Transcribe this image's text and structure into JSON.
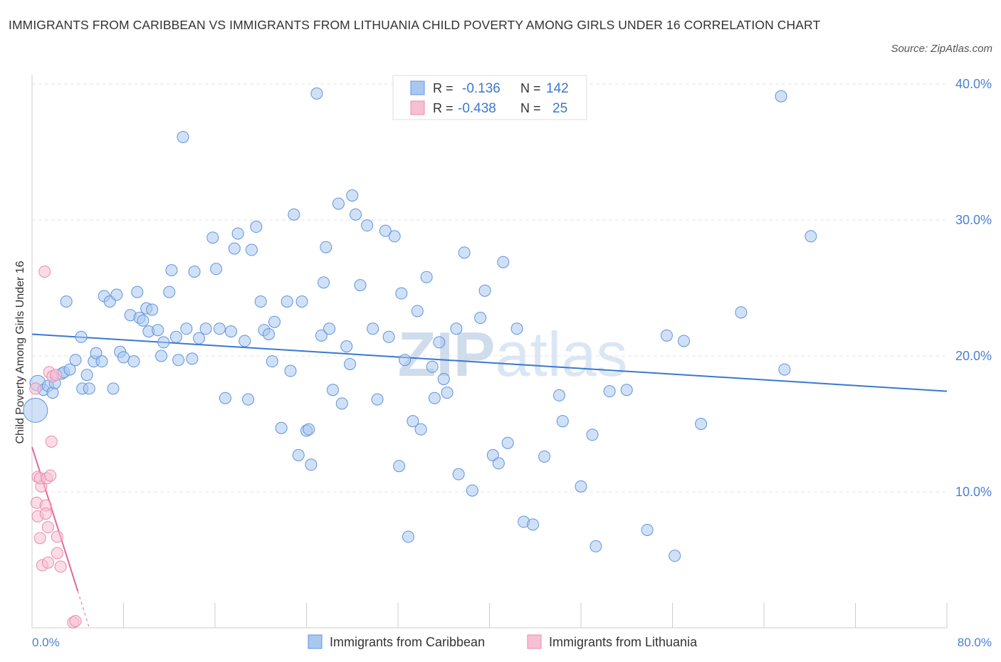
{
  "title": "IMMIGRANTS FROM CARIBBEAN VS IMMIGRANTS FROM LITHUANIA CHILD POVERTY AMONG GIRLS UNDER 16 CORRELATION CHART",
  "source": "Source: ZipAtlas.com",
  "watermark": "ZIPatlas",
  "colors": {
    "blue_fill": "#a9c8f0",
    "blue_stroke": "#5f93dc",
    "blue_line": "#3a78d0",
    "pink_fill": "#f7c0d2",
    "pink_stroke": "#e98bad",
    "pink_line": "#e2689a",
    "axis_text": "#4a7fd4",
    "grid": "#e3e3e3"
  },
  "legend": {
    "rows": [
      {
        "r_label": "R =",
        "r_value": "-0.136",
        "n_label": "N =",
        "n_value": "142"
      },
      {
        "r_label": "R =",
        "r_value": "-0.438",
        "n_label": "N =",
        "n_value": "25"
      }
    ]
  },
  "chart_data": {
    "type": "scatter",
    "title": "IMMIGRANTS FROM CARIBBEAN VS IMMIGRANTS FROM LITHUANIA CHILD POVERTY AMONG GIRLS UNDER 16 CORRELATION CHART",
    "xlabel": "",
    "ylabel": "Child Poverty Among Girls Under 16",
    "xlim": [
      0,
      80
    ],
    "ylim": [
      0,
      40
    ],
    "x_tick_labels": [
      "0.0%",
      "80.0%"
    ],
    "y_tick_values": [
      10,
      20,
      30,
      40
    ],
    "y_tick_labels": [
      "10.0%",
      "20.0%",
      "30.0%",
      "40.0%"
    ],
    "grid": true,
    "legend_position": "top-center",
    "series": [
      {
        "name": "Immigrants from Caribbean",
        "r": -0.136,
        "n": 142,
        "trend": {
          "x": [
            0,
            80
          ],
          "y": [
            21.6,
            17.4
          ]
        },
        "points": [
          [
            0.5,
            18.0
          ],
          [
            0.3,
            16.0
          ],
          [
            1.0,
            17.5
          ],
          [
            1.4,
            17.8
          ],
          [
            1.8,
            17.3
          ],
          [
            2.0,
            18.0
          ],
          [
            2.6,
            18.7
          ],
          [
            2.8,
            18.8
          ],
          [
            3.0,
            24.0
          ],
          [
            3.3,
            19.0
          ],
          [
            3.8,
            19.7
          ],
          [
            4.3,
            21.4
          ],
          [
            4.4,
            17.6
          ],
          [
            4.8,
            18.6
          ],
          [
            5.0,
            17.6
          ],
          [
            5.4,
            19.6
          ],
          [
            5.6,
            20.2
          ],
          [
            6.1,
            19.6
          ],
          [
            6.3,
            24.4
          ],
          [
            6.8,
            24.0
          ],
          [
            7.1,
            17.6
          ],
          [
            7.4,
            24.5
          ],
          [
            7.7,
            20.3
          ],
          [
            8.0,
            19.9
          ],
          [
            8.6,
            23.0
          ],
          [
            8.9,
            19.6
          ],
          [
            9.2,
            24.7
          ],
          [
            9.4,
            22.8
          ],
          [
            9.7,
            22.6
          ],
          [
            10.0,
            23.5
          ],
          [
            10.2,
            21.8
          ],
          [
            10.5,
            23.4
          ],
          [
            11.0,
            21.9
          ],
          [
            11.3,
            20.0
          ],
          [
            11.5,
            21.0
          ],
          [
            12.0,
            24.7
          ],
          [
            12.2,
            26.3
          ],
          [
            12.6,
            21.4
          ],
          [
            12.8,
            19.7
          ],
          [
            13.2,
            36.1
          ],
          [
            13.5,
            22.0
          ],
          [
            14.0,
            19.8
          ],
          [
            14.2,
            26.2
          ],
          [
            14.6,
            21.3
          ],
          [
            15.2,
            22.0
          ],
          [
            15.8,
            28.7
          ],
          [
            16.1,
            26.4
          ],
          [
            16.4,
            22.0
          ],
          [
            16.9,
            16.9
          ],
          [
            17.4,
            21.8
          ],
          [
            17.7,
            27.9
          ],
          [
            18.0,
            29.0
          ],
          [
            18.6,
            21.1
          ],
          [
            18.9,
            16.8
          ],
          [
            19.2,
            27.8
          ],
          [
            19.6,
            29.5
          ],
          [
            20.0,
            24.0
          ],
          [
            20.3,
            21.9
          ],
          [
            20.7,
            21.6
          ],
          [
            21.0,
            19.6
          ],
          [
            21.2,
            22.5
          ],
          [
            21.8,
            14.7
          ],
          [
            22.3,
            24.0
          ],
          [
            22.6,
            18.9
          ],
          [
            22.9,
            30.4
          ],
          [
            23.3,
            12.7
          ],
          [
            23.6,
            24.0
          ],
          [
            24.0,
            14.5
          ],
          [
            24.2,
            14.6
          ],
          [
            24.4,
            12.0
          ],
          [
            24.9,
            39.3
          ],
          [
            25.3,
            21.5
          ],
          [
            25.5,
            25.4
          ],
          [
            25.7,
            28.0
          ],
          [
            26.0,
            22.0
          ],
          [
            26.3,
            17.5
          ],
          [
            26.8,
            31.2
          ],
          [
            27.1,
            16.5
          ],
          [
            27.5,
            20.7
          ],
          [
            27.8,
            19.4
          ],
          [
            28.0,
            31.8
          ],
          [
            28.3,
            30.4
          ],
          [
            28.7,
            25.2
          ],
          [
            29.3,
            29.6
          ],
          [
            29.8,
            22.0
          ],
          [
            30.2,
            16.8
          ],
          [
            30.9,
            29.2
          ],
          [
            31.2,
            21.4
          ],
          [
            31.7,
            28.8
          ],
          [
            32.1,
            11.9
          ],
          [
            32.3,
            24.6
          ],
          [
            32.6,
            19.7
          ],
          [
            32.9,
            6.7
          ],
          [
            33.3,
            15.2
          ],
          [
            33.7,
            23.3
          ],
          [
            34.0,
            14.6
          ],
          [
            34.5,
            25.8
          ],
          [
            35.0,
            19.2
          ],
          [
            35.2,
            16.9
          ],
          [
            35.6,
            21.0
          ],
          [
            36.0,
            18.3
          ],
          [
            36.3,
            17.3
          ],
          [
            37.1,
            22.0
          ],
          [
            37.3,
            11.3
          ],
          [
            37.8,
            27.6
          ],
          [
            38.5,
            10.1
          ],
          [
            39.2,
            22.8
          ],
          [
            39.6,
            24.8
          ],
          [
            40.3,
            12.7
          ],
          [
            40.8,
            12.1
          ],
          [
            41.2,
            26.9
          ],
          [
            41.6,
            13.6
          ],
          [
            42.4,
            22.0
          ],
          [
            43.0,
            7.8
          ],
          [
            43.8,
            7.6
          ],
          [
            44.8,
            12.6
          ],
          [
            46.1,
            17.1
          ],
          [
            46.4,
            15.2
          ],
          [
            48.0,
            10.4
          ],
          [
            49.0,
            14.2
          ],
          [
            49.3,
            6.0
          ],
          [
            50.5,
            17.4
          ],
          [
            52.0,
            17.5
          ],
          [
            53.8,
            7.2
          ],
          [
            55.5,
            21.5
          ],
          [
            56.2,
            5.3
          ],
          [
            57.0,
            21.1
          ],
          [
            58.5,
            15.0
          ],
          [
            62.0,
            23.2
          ],
          [
            65.5,
            39.1
          ],
          [
            65.8,
            19.0
          ],
          [
            68.1,
            28.8
          ]
        ]
      },
      {
        "name": "Immigrants from Lithuania",
        "r": -0.438,
        "n": 25,
        "trend": {
          "x": [
            0,
            4.0
          ],
          "y": [
            13.3,
            2.7
          ],
          "dashed_to": [
            5.0,
            0
          ]
        },
        "points": [
          [
            0.3,
            17.6
          ],
          [
            0.5,
            11.1
          ],
          [
            0.4,
            9.2
          ],
          [
            0.5,
            8.2
          ],
          [
            0.8,
            10.4
          ],
          [
            0.7,
            11.0
          ],
          [
            0.7,
            6.6
          ],
          [
            0.9,
            4.6
          ],
          [
            1.1,
            26.2
          ],
          [
            1.2,
            9.0
          ],
          [
            1.2,
            8.4
          ],
          [
            1.3,
            11.0
          ],
          [
            1.4,
            7.4
          ],
          [
            1.4,
            4.8
          ],
          [
            1.5,
            18.8
          ],
          [
            1.6,
            11.2
          ],
          [
            1.7,
            13.7
          ],
          [
            1.8,
            18.5
          ],
          [
            2.1,
            18.6
          ],
          [
            2.2,
            6.7
          ],
          [
            2.2,
            5.5
          ],
          [
            2.5,
            4.5
          ],
          [
            3.6,
            0.4
          ],
          [
            3.8,
            0.5
          ]
        ]
      }
    ]
  }
}
